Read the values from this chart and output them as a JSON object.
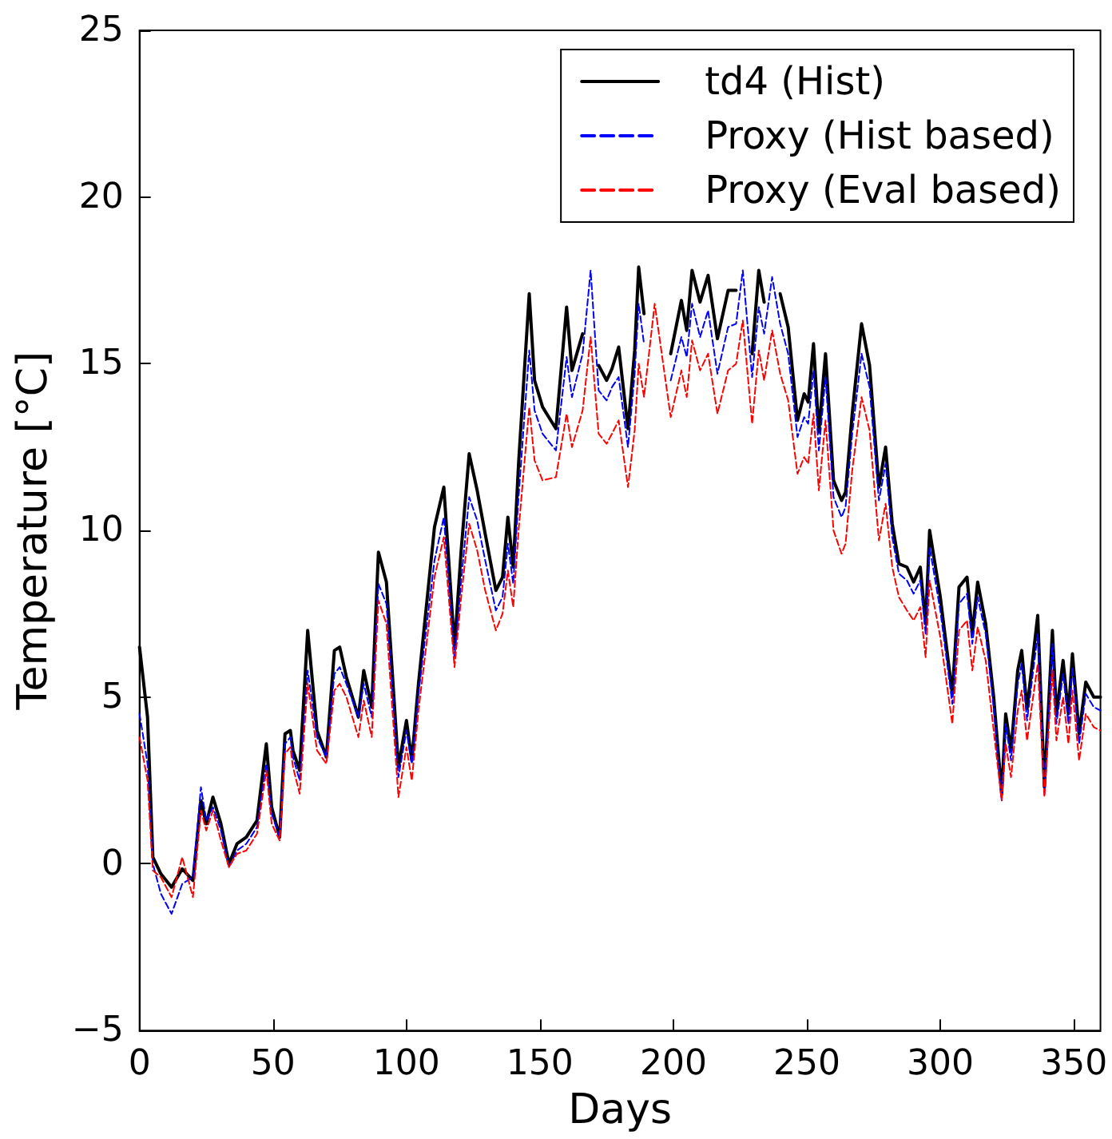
{
  "chart_data": {
    "type": "line",
    "xlabel": "Days",
    "ylabel": "Temperature [°C]",
    "xlim": [
      0,
      360
    ],
    "xticks": [
      0,
      50,
      100,
      150,
      200,
      250,
      300,
      350
    ],
    "ylim": [
      -5,
      25
    ],
    "yticks": [
      {
        "value": -5,
        "label": "−5"
      },
      0,
      5,
      10,
      15,
      20,
      25
    ],
    "legend": "top right",
    "x": [
      0,
      3,
      5,
      8,
      12,
      16,
      20,
      23,
      25,
      27.5,
      30.5,
      33.5,
      36.5,
      40,
      44,
      47.5,
      49.5,
      52.5,
      54.5,
      56.5,
      57.5,
      60,
      63,
      66.5,
      70,
      73,
      75,
      77.5,
      82,
      84,
      87,
      89.5,
      92.5,
      97,
      100,
      102,
      104.5,
      110.5,
      114,
      118,
      120.5,
      123.5,
      126.5,
      129.5,
      133.5,
      136,
      138,
      140,
      142,
      146,
      148,
      151,
      156,
      160,
      162,
      166,
      169,
      172,
      175,
      177,
      179.5,
      183,
      185.5,
      187,
      189,
      193,
      199,
      203,
      205,
      207,
      210,
      213,
      216.5,
      220.5,
      223.5,
      226,
      229.5,
      232,
      234,
      237,
      240,
      243,
      246.5,
      249,
      250.5,
      252.5,
      254.5,
      257,
      260,
      263,
      264.5,
      267,
      270.5,
      273.5,
      277,
      279.5,
      282,
      284.5,
      287.5,
      290,
      292.5,
      294.5,
      296,
      300,
      304.5,
      307,
      310,
      312,
      314,
      317,
      320,
      323,
      324.5,
      326.5,
      329,
      330.5,
      332.5,
      336.5,
      339,
      342,
      343.5,
      346,
      348,
      349.5,
      352,
      354.5,
      357.5,
      360
    ],
    "series": [
      {
        "name": "td4 (Hist)",
        "color": "#000000",
        "line_style": "solid",
        "values": [
          6.5,
          4.4,
          0.2,
          -0.3,
          -0.7,
          -0.15,
          -0.5,
          1.9,
          1.2,
          2.0,
          1.2,
          0.0,
          0.6,
          0.8,
          1.3,
          3.6,
          1.7,
          0.8,
          3.9,
          4.0,
          3.4,
          2.8,
          7.0,
          4.0,
          3.2,
          6.4,
          6.5,
          5.6,
          4.4,
          5.8,
          4.7,
          9.35,
          8.45,
          2.9,
          4.3,
          3.1,
          5.4,
          10.1,
          11.3,
          6.5,
          9.4,
          12.3,
          11.2,
          9.9,
          8.2,
          8.6,
          10.4,
          8.9,
          12.0,
          17.1,
          14.5,
          13.7,
          13.05,
          16.7,
          14.8,
          15.9,
          null,
          14.95,
          14.5,
          14.85,
          15.5,
          13.05,
          15.4,
          17.9,
          16.5,
          null,
          15.3,
          16.9,
          16.0,
          17.8,
          16.85,
          17.65,
          15.75,
          17.2,
          17.2,
          null,
          15.3,
          17.8,
          16.85,
          null,
          17.1,
          16.1,
          13.3,
          14.1,
          13.85,
          15.6,
          12.95,
          15.3,
          11.5,
          10.9,
          11.15,
          13.5,
          16.2,
          14.95,
          11.3,
          12.5,
          10.2,
          9.0,
          8.9,
          8.45,
          8.9,
          7.2,
          10.0,
          8.0,
          5.1,
          8.3,
          8.6,
          6.9,
          8.45,
          7.2,
          5.0,
          2.1,
          4.5,
          3.4,
          5.8,
          6.4,
          4.65,
          7.45,
          2.3,
          7.0,
          4.5,
          6.1,
          4.5,
          6.3,
          3.9,
          5.45,
          5.0,
          5.0
        ]
      },
      {
        "name": "Proxy (Hist based)",
        "color": "#0000ff",
        "line_style": "dashed",
        "values": [
          4.5,
          3.0,
          0.0,
          -0.9,
          -1.5,
          -0.6,
          -0.4,
          2.3,
          1.3,
          1.7,
          1.0,
          -0.1,
          0.4,
          0.6,
          1.1,
          3.0,
          1.5,
          0.8,
          3.6,
          3.8,
          3.2,
          2.5,
          5.8,
          3.8,
          3.2,
          5.7,
          5.9,
          5.4,
          4.4,
          5.4,
          4.4,
          8.4,
          7.8,
          2.6,
          4.0,
          3.0,
          5.1,
          9.1,
          10.4,
          6.2,
          8.5,
          11.0,
          10.3,
          9.1,
          7.6,
          8.0,
          9.6,
          8.4,
          11.0,
          15.4,
          13.6,
          12.9,
          12.4,
          15.2,
          14.0,
          15.3,
          17.8,
          14.2,
          13.9,
          14.3,
          14.6,
          12.5,
          14.7,
          16.8,
          15.6,
          null,
          14.5,
          15.8,
          15.2,
          16.8,
          15.8,
          16.6,
          14.7,
          16.1,
          16.2,
          17.8,
          14.6,
          16.7,
          15.9,
          17.6,
          16.2,
          15.3,
          12.8,
          13.4,
          13.2,
          14.8,
          12.4,
          14.6,
          11.0,
          10.4,
          10.7,
          12.9,
          15.3,
          14.3,
          10.9,
          12.0,
          9.8,
          8.7,
          8.5,
          8.1,
          8.5,
          6.9,
          9.5,
          7.6,
          4.8,
          7.8,
          8.1,
          6.6,
          8.0,
          6.9,
          4.7,
          1.9,
          4.2,
          3.1,
          5.4,
          6.0,
          4.3,
          6.9,
          2.1,
          6.6,
          4.2,
          5.7,
          4.2,
          5.9,
          3.6,
          5.1,
          4.7,
          4.6
        ]
      },
      {
        "name": "Proxy (Eval based)",
        "color": "#ff0000",
        "line_style": "dashed",
        "values": [
          3.8,
          2.5,
          -0.2,
          -0.4,
          -1.0,
          0.2,
          -1.0,
          1.6,
          1.0,
          1.6,
          0.7,
          -0.1,
          0.3,
          0.4,
          0.9,
          2.8,
          1.2,
          0.7,
          3.3,
          3.5,
          2.9,
          2.1,
          5.4,
          3.4,
          3.0,
          5.2,
          5.4,
          5.0,
          3.8,
          4.9,
          3.8,
          7.9,
          7.2,
          2.0,
          3.5,
          2.5,
          4.6,
          8.6,
          9.8,
          5.9,
          8.0,
          10.2,
          9.4,
          8.2,
          7.0,
          7.5,
          8.8,
          7.7,
          10.0,
          13.7,
          12.1,
          11.5,
          11.6,
          13.5,
          12.5,
          13.6,
          15.8,
          12.9,
          12.6,
          12.9,
          13.3,
          11.3,
          13.0,
          15.0,
          14.0,
          16.8,
          13.4,
          14.8,
          14.0,
          15.7,
          14.8,
          15.3,
          13.5,
          14.8,
          15.0,
          16.3,
          13.2,
          15.4,
          14.5,
          16.0,
          14.7,
          13.9,
          11.7,
          12.2,
          12.0,
          13.5,
          11.2,
          13.3,
          10.0,
          9.3,
          9.6,
          11.8,
          14.0,
          13.0,
          9.7,
          10.8,
          8.9,
          8.0,
          7.6,
          7.3,
          7.7,
          6.2,
          8.5,
          6.8,
          4.2,
          7.0,
          7.3,
          5.8,
          7.1,
          6.1,
          4.0,
          1.9,
          3.6,
          2.6,
          4.6,
          5.2,
          3.7,
          6.0,
          2.0,
          5.8,
          3.7,
          5.0,
          3.6,
          5.2,
          3.1,
          4.5,
          4.1,
          4.0
        ]
      }
    ]
  }
}
